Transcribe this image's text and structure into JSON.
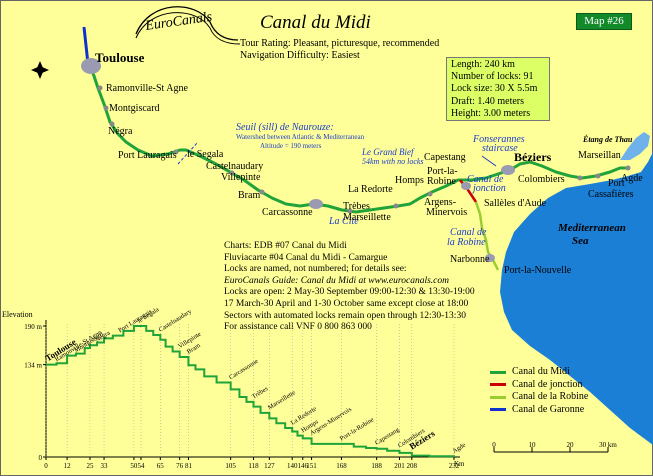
{
  "logo": {
    "text": "EuroCanals"
  },
  "header": {
    "title": "Canal du Midi",
    "map_number": "Map #26",
    "tour_rating": "Tour Rating: Pleasant, picturesque, recommended",
    "navigation": "Navigation Difficulty: Easiest"
  },
  "stats": {
    "length": "Length: 240 km",
    "locks": "Number of locks: 91",
    "lock_size": "Lock size: 30 X 5.5m",
    "draft": "Draft: 1.40 meters",
    "height": "Height: 3.00 meters"
  },
  "map": {
    "places": {
      "toulouse": "Toulouse",
      "ramonville": "Ramonville-St Agne",
      "montgiscard": "Montgiscard",
      "negra": "Négra",
      "port_lauragais": "Port Lauragais",
      "segala": "le Segala",
      "castelnaudary": "Castelnaudary",
      "villepinte": "Villepinte",
      "bram": "Bram",
      "carcassonne": "Carcassonne",
      "la_cite": "La Cité",
      "trebes": "Trèbes",
      "marseillette": "Marseillette",
      "la_redorte": "La Redorte",
      "homps": "Homps",
      "argens": "Argens-",
      "minervois": "Minervois",
      "port_la_robine_1": "Port-la-",
      "port_la_robine_2": "Robine",
      "capestang": "Capestang",
      "colombiers": "Colombiers",
      "beziers": "Béziers",
      "marseillan": "Marseillan",
      "agde": "Agde",
      "port_cassafieres_1": "Port",
      "port_cassafieres_2": "Cassafières",
      "salleles": "Sallèles d'Aude",
      "narbonne": "Narbonne",
      "port_la_nouvelle": "Port-la-Nouvelle",
      "etang_de_thau": "Étang de Thau",
      "sea_1": "Mediterranean",
      "sea_2": "Sea"
    },
    "notes": {
      "seuil_title": "Seuil (sill) de Naurouze:",
      "seuil_line1": "Watershed between Atlantic & Mediterranean",
      "seuil_line2": "Altitude = 190 meters",
      "grand_bief_1": "Le Grand Bief",
      "grand_bief_2": "54km with no locks",
      "fonserannes_1": "Fonserannes",
      "fonserannes_2": "staircase",
      "jonction_1": "Canal de",
      "jonction_2": "jonction",
      "robine_1": "Canal de",
      "robine_2": "la Robine"
    }
  },
  "info": [
    "Charts: EDB #07 Canal du Midi",
    "Fluviacarte #04 Canal du Midi - Camargue",
    "Locks are named, not numbered; for details see:",
    "EuroCanals Guide: Canal du Midi at www.eurocanals.com",
    "Locks are open: 2 May-30 September 09:00-12:30 & 13:30-19:00",
    "17 March-30 April and 1-30 October same except close at 18:00",
    "Sectors with automated locks remain open through 12:30-13:30",
    "For assistance call VNF 0 800 863 000"
  ],
  "legend": [
    {
      "label": "Canal du Midi",
      "color": "#1fa33a"
    },
    {
      "label": "Canal de jonction",
      "color": "#cc0000"
    },
    {
      "label": "Canal de la Robine",
      "color": "#99cc33"
    },
    {
      "label": "Canal de Garonne",
      "color": "#1133cc"
    }
  ],
  "scale": {
    "ticks": [
      "0",
      "10",
      "20",
      "30 km"
    ]
  },
  "profile": {
    "elevation_label": "Elevation",
    "km_unit": "Km",
    "y_labels": [
      {
        "value": 190,
        "label": "190 m"
      },
      {
        "value": 134,
        "label": "134 m"
      },
      {
        "value": 0,
        "label": "0"
      }
    ],
    "x_ticks": [
      0,
      12,
      25,
      33,
      50,
      54,
      65,
      76,
      81,
      105,
      118,
      127,
      140,
      146,
      151,
      168,
      188,
      201,
      208,
      232
    ],
    "points": [
      [
        0,
        134
      ],
      [
        6,
        136
      ],
      [
        12,
        147
      ],
      [
        17,
        150
      ],
      [
        22,
        158
      ],
      [
        25,
        162
      ],
      [
        29,
        166
      ],
      [
        33,
        172
      ],
      [
        38,
        176
      ],
      [
        44,
        183
      ],
      [
        50,
        190
      ],
      [
        54,
        190
      ],
      [
        57,
        183
      ],
      [
        61,
        177
      ],
      [
        65,
        170
      ],
      [
        68,
        160
      ],
      [
        72,
        153
      ],
      [
        76,
        145
      ],
      [
        81,
        133
      ],
      [
        85,
        127
      ],
      [
        90,
        117
      ],
      [
        97,
        108
      ],
      [
        105,
        98
      ],
      [
        110,
        87
      ],
      [
        114,
        80
      ],
      [
        118,
        73
      ],
      [
        122,
        64
      ],
      [
        127,
        56
      ],
      [
        131,
        49
      ],
      [
        136,
        42
      ],
      [
        140,
        37
      ],
      [
        143,
        31
      ],
      [
        146,
        27
      ],
      [
        151,
        19
      ],
      [
        168,
        19
      ],
      [
        175,
        15
      ],
      [
        182,
        13
      ],
      [
        188,
        12
      ],
      [
        194,
        9
      ],
      [
        201,
        6
      ],
      [
        208,
        2
      ],
      [
        218,
        1
      ],
      [
        232,
        0
      ]
    ],
    "towns": [
      {
        "km": 1,
        "label": "Toulouse"
      },
      {
        "km": 6,
        "label": "Ramonville-St Agne"
      },
      {
        "km": 17,
        "label": "Montgiscard"
      },
      {
        "km": 29,
        "label": "Négra"
      },
      {
        "km": 42,
        "label": "Port Lauragais"
      },
      {
        "km": 53,
        "label": "le Segala"
      },
      {
        "km": 65,
        "label": "Castelnaudary"
      },
      {
        "km": 76,
        "label": "Villepinte"
      },
      {
        "km": 81,
        "label": "Bram"
      },
      {
        "km": 105,
        "label": "Carcassonne"
      },
      {
        "km": 118,
        "label": "Trèbes"
      },
      {
        "km": 127,
        "label": "Marseillette"
      },
      {
        "km": 140,
        "label": "La Redorte"
      },
      {
        "km": 146,
        "label": "Homps"
      },
      {
        "km": 151,
        "label": "Argens-Minervois"
      },
      {
        "km": 168,
        "label": "Port-la-Robine"
      },
      {
        "km": 188,
        "label": "Capestang"
      },
      {
        "km": 201,
        "label": "Colombiers"
      },
      {
        "km": 208,
        "label": "Béziers"
      },
      {
        "km": 232,
        "label": "Agde"
      }
    ]
  },
  "colors": {
    "background": "#ffff99",
    "canal": "#1fa33a",
    "sea": "#1b7fd6",
    "badge": "#138a2a",
    "stats_box": "#dcff66",
    "text": "#000000",
    "note_blue": "#1a3ccc"
  }
}
